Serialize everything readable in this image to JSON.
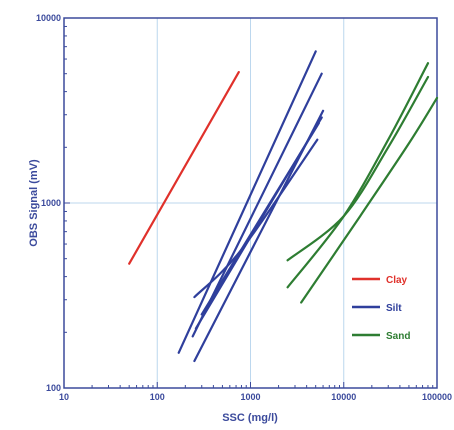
{
  "chart_data": {
    "type": "line",
    "title": "",
    "xlabel": "SSC (mg/l)",
    "ylabel": "OBS Signal (mV)",
    "xscale": "log",
    "yscale": "log",
    "xlim": [
      10,
      100000
    ],
    "ylim": [
      100,
      10000
    ],
    "x_ticks": [
      "10",
      "100",
      "1000",
      "10000",
      "100000"
    ],
    "y_ticks": [
      "100",
      "1000",
      "10000"
    ],
    "grid": true,
    "legend_position": "bottom-right",
    "legend": [
      {
        "label": "Clay",
        "color": "#e0312b"
      },
      {
        "label": "Silt",
        "color": "#2f3f9c"
      },
      {
        "label": "Sand",
        "color": "#2e7d32"
      }
    ],
    "series": [
      {
        "group": "Clay",
        "color": "#e0312b",
        "points": [
          [
            50,
            470
          ],
          [
            750,
            5100
          ]
        ]
      },
      {
        "group": "Silt",
        "color": "#2f3f9c",
        "points": [
          [
            170,
            155
          ],
          [
            5000,
            6600
          ]
        ]
      },
      {
        "group": "Silt",
        "color": "#2f3f9c",
        "points": [
          [
            240,
            190
          ],
          [
            5800,
            5000
          ]
        ]
      },
      {
        "group": "Silt",
        "color": "#2f3f9c",
        "points": [
          [
            250,
            140
          ],
          [
            6000,
            3150
          ]
        ]
      },
      {
        "group": "Silt",
        "color": "#2f3f9c",
        "points": [
          [
            260,
            210
          ],
          [
            5800,
            2900
          ]
        ]
      },
      {
        "group": "Silt",
        "color": "#2f3f9c",
        "points": [
          [
            300,
            250
          ],
          [
            5400,
            2700
          ]
        ]
      },
      {
        "group": "Silt",
        "color": "#2f3f9c",
        "points": [
          [
            250,
            310
          ],
          [
            800,
            560
          ],
          [
            5200,
            2200
          ]
        ]
      },
      {
        "group": "Sand",
        "color": "#2e7d32",
        "points": [
          [
            2500,
            350
          ],
          [
            10000,
            850
          ],
          [
            30000,
            2200
          ],
          [
            80000,
            5700
          ]
        ]
      },
      {
        "group": "Sand",
        "color": "#2e7d32",
        "points": [
          [
            2500,
            490
          ],
          [
            10000,
            850
          ],
          [
            30000,
            2000
          ],
          [
            80000,
            4800
          ]
        ]
      },
      {
        "group": "Sand",
        "color": "#2e7d32",
        "points": [
          [
            3500,
            290
          ],
          [
            15000,
            850
          ],
          [
            50000,
            2100
          ],
          [
            100000,
            3700
          ]
        ]
      }
    ]
  }
}
